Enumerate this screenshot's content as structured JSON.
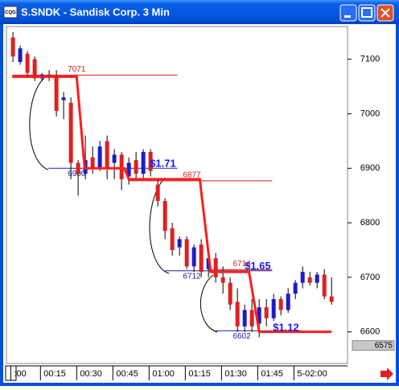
{
  "window": {
    "title": "S.SNDK - Sandisk Corp. 3 Min",
    "icon_text": "CQG"
  },
  "chart_data": {
    "type": "candlestick",
    "up_color": "#1c1cc8",
    "down_color": "#e02020",
    "xlim": [
      -0.9,
      46.2
    ],
    "ylim": [
      6542,
      7160
    ],
    "xticks": [
      {
        "value": -0.3,
        "label": ":00"
      },
      {
        "value": 3.8,
        "label": "00:15"
      },
      {
        "value": 8.8,
        "label": "00:30"
      },
      {
        "value": 13.8,
        "label": "00:45"
      },
      {
        "value": 18.8,
        "label": "01:00"
      },
      {
        "value": 23.8,
        "label": "01:15"
      },
      {
        "value": 28.8,
        "label": "01:30"
      },
      {
        "value": 33.8,
        "label": "01:45"
      },
      {
        "value": 38.8,
        "label": "5-02:00"
      }
    ],
    "yticks": [
      6600,
      6700,
      6800,
      6900,
      7000,
      7100
    ],
    "open": [
      7140,
      7095,
      7110,
      7100,
      7065,
      7072,
      7070,
      7025,
      7020,
      6910,
      6890,
      6920,
      6900,
      6950,
      6910,
      6925,
      6885,
      6915,
      6890,
      6930,
      6870,
      6840,
      6790,
      6755,
      6770,
      6720,
      6760,
      6715,
      6735,
      6700,
      6690,
      6655,
      6610,
      6640,
      6615,
      6645,
      6625,
      6660,
      6640,
      6670,
      6690,
      6700,
      6690,
      6705,
      6665
    ],
    "high": [
      7150,
      7125,
      7115,
      7105,
      7075,
      7080,
      7080,
      7040,
      7030,
      6915,
      6960,
      6940,
      6950,
      6960,
      6935,
      6930,
      6920,
      6930,
      6935,
      6935,
      6880,
      6845,
      6800,
      6775,
      6775,
      6760,
      6770,
      6740,
      6745,
      6720,
      6700,
      6680,
      6650,
      6660,
      6660,
      6660,
      6670,
      6665,
      6680,
      6695,
      6720,
      6710,
      6710,
      6715,
      6700
    ],
    "low": [
      7095,
      7090,
      7070,
      7060,
      7060,
      7060,
      6995,
      6990,
      6880,
      6850,
      6880,
      6890,
      6895,
      6880,
      6880,
      6860,
      6870,
      6880,
      6880,
      6885,
      6830,
      6770,
      6740,
      6740,
      6715,
      6710,
      6700,
      6700,
      6690,
      6670,
      6640,
      6600,
      6600,
      6600,
      6590,
      6610,
      6620,
      6630,
      6635,
      6660,
      6680,
      6685,
      6680,
      6660,
      6650
    ],
    "close": [
      7105,
      7120,
      7075,
      7065,
      7072,
      7068,
      7005,
      7030,
      6910,
      6890,
      6915,
      6900,
      6940,
      6900,
      6925,
      6880,
      6910,
      6890,
      6930,
      6895,
      6840,
      6785,
      6750,
      6770,
      6720,
      6755,
      6710,
      6735,
      6700,
      6690,
      6650,
      6610,
      6640,
      6610,
      6645,
      6625,
      6660,
      6640,
      6670,
      6690,
      6710,
      6690,
      6705,
      6665,
      6655
    ],
    "stop_line": {
      "color": "#ff1c1c",
      "x": [
        -0.1,
        8.8,
        9.9,
        15.4,
        16,
        25.8,
        27.3,
        32.6,
        34,
        44
      ],
      "y": [
        7068,
        7068,
        6900,
        6900,
        6880,
        6880,
        6710,
        6710,
        6600,
        6600
      ]
    },
    "levels": [
      {
        "value": 7071,
        "color": "#d02020",
        "from": -0.1,
        "to": 22.7,
        "label_at": 8.8,
        "side": "above"
      },
      {
        "value": 6900,
        "color": "#2020a0",
        "from": 4.9,
        "to": 22.7,
        "label_at": 8.8,
        "side": "below"
      },
      {
        "value": 6877,
        "color": "#d02020",
        "from": 16,
        "to": 35.8,
        "label_at": 24.7,
        "side": "above"
      },
      {
        "value": 6712,
        "color": "#2020a0",
        "from": 21,
        "to": 35.8,
        "label_at": 24.7,
        "side": "below"
      },
      {
        "value": 6714,
        "color": "#d02020",
        "from": 27.3,
        "to": 35.8,
        "label_at": 31.6,
        "side": "above"
      },
      {
        "value": 6602,
        "color": "#2020a0",
        "from": 27.7,
        "to": 39.9,
        "label_at": 31.6,
        "side": "below"
      }
    ],
    "annotations": [
      {
        "text": "$1.71",
        "x": 20.7,
        "y": 6908,
        "color": "#1a1aff"
      },
      {
        "text": "$1.65",
        "x": 33.8,
        "y": 6720,
        "color": "#1a1aff"
      },
      {
        "text": "$1.12",
        "x": 37.7,
        "y": 6607,
        "color": "#1a1aff"
      }
    ],
    "last_price": 6575
  }
}
